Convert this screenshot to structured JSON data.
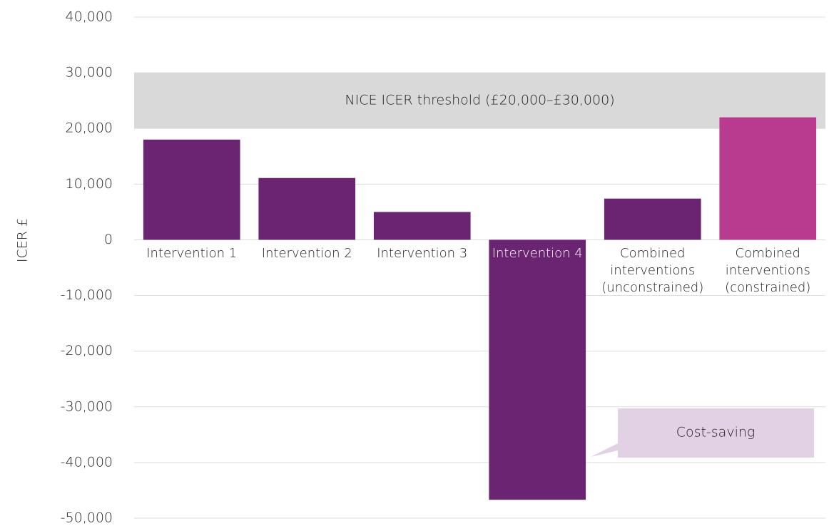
{
  "chart_data": {
    "type": "bar",
    "y_label": "ICER £",
    "categories": [
      "Intervention 1",
      "Intervention 2",
      "Intervention 3",
      "Intervention 4",
      "Combined interventions (unconstrained)",
      "Combined interventions (constrained)"
    ],
    "values": [
      18000,
      11100,
      5000,
      -46700,
      7400,
      22000
    ],
    "colors": [
      "#6a2472",
      "#6a2472",
      "#6a2472",
      "#6a2472",
      "#6a2472",
      "#b83b8f"
    ],
    "ylim": [
      -50000,
      40000
    ],
    "yticks": [
      {
        "value": -50000,
        "label": "-50,000"
      },
      {
        "value": -40000,
        "label": "-40,000"
      },
      {
        "value": -30000,
        "label": "-30,000"
      },
      {
        "value": -20000,
        "label": "-20,000"
      },
      {
        "value": -10000,
        "label": "-10,000"
      },
      0,
      {
        "value": 10000,
        "label": "10,000"
      },
      {
        "value": 20000,
        "label": "20,000"
      },
      {
        "value": 30000,
        "label": "30,000"
      },
      {
        "value": 40000,
        "label": "40,000"
      }
    ],
    "grid": true,
    "threshold": {
      "label": "NICE ICER threshold (£20,000–£30,000)",
      "range": [
        20000,
        30000
      ],
      "color": "#d9d9d9"
    },
    "annotation": {
      "text": "Cost-saving",
      "color": "#e2d0e4"
    }
  }
}
